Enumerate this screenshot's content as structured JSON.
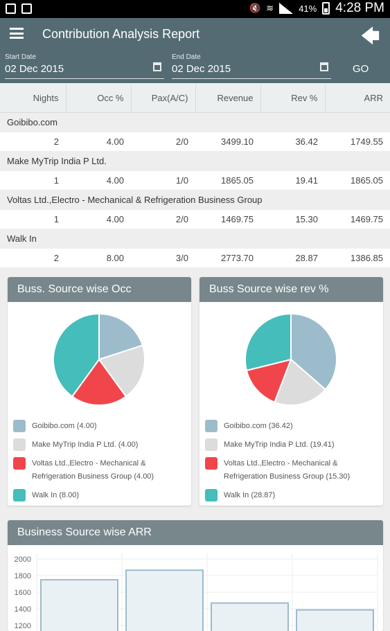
{
  "status_bar": {
    "time": "4:28 PM",
    "battery": "41%"
  },
  "app_bar": {
    "title": "Contribution Analysis Report"
  },
  "filters": {
    "start_label": "Start Date",
    "start_value": "02 Dec 2015",
    "end_label": "End Date",
    "end_value": "02 Dec 2015",
    "go_label": "GO"
  },
  "table": {
    "headers": [
      "Nights",
      "Occ %",
      "Pax(A/C)",
      "Revenue",
      "Rev %",
      "ARR"
    ],
    "groups": [
      {
        "name": "Goibibo.com",
        "row": [
          "2",
          "4.00",
          "2/0",
          "3499.10",
          "36.42",
          "1749.55"
        ]
      },
      {
        "name": "Make MyTrip India P Ltd.",
        "row": [
          "1",
          "4.00",
          "1/0",
          "1865.05",
          "19.41",
          "1865.05"
        ]
      },
      {
        "name": "Voltas Ltd.,Electro - Mechanical & Refrigeration Business Group",
        "row": [
          "1",
          "4.00",
          "2/0",
          "1469.75",
          "15.30",
          "1469.75"
        ]
      },
      {
        "name": "Walk In",
        "row": [
          "2",
          "8.00",
          "3/0",
          "2773.70",
          "28.87",
          "1386.85"
        ]
      }
    ]
  },
  "charts": {
    "occ_title": "Buss. Source wise Occ",
    "rev_title": "Buss Source wise rev %",
    "arr_title": "Business Source wise ARR",
    "occ_legend": [
      "Goibibo.com (4.00)",
      "Make MyTrip India P Ltd. (4.00)",
      "Voltas Ltd.,Electro - Mechanical & Refrigeration Business Group (4.00)",
      "Walk In (8.00)"
    ],
    "rev_legend": [
      "Goibibo.com (36.42)",
      "Make MyTrip India P Ltd. (19.41)",
      "Voltas Ltd.,Electro - Mechanical & Refrigeration Business Group (15.30)",
      "Walk In (28.87)"
    ],
    "colors": [
      "#9cbccb",
      "#dcdcdc",
      "#f0464b",
      "#44bdbb"
    ]
  },
  "chart_data": [
    {
      "type": "pie",
      "title": "Buss. Source wise Occ",
      "categories": [
        "Goibibo.com",
        "Make MyTrip India P Ltd.",
        "Voltas Ltd.,Electro - Mechanical & Refrigeration Business Group",
        "Walk In"
      ],
      "values": [
        4.0,
        4.0,
        4.0,
        8.0
      ]
    },
    {
      "type": "pie",
      "title": "Buss Source wise rev %",
      "categories": [
        "Goibibo.com",
        "Make MyTrip India P Ltd.",
        "Voltas Ltd.,Electro - Mechanical & Refrigeration Business Group",
        "Walk In"
      ],
      "values": [
        36.42,
        19.41,
        15.3,
        28.87
      ]
    },
    {
      "type": "bar",
      "title": "Business Source wise ARR",
      "categories": [
        "Goibibo.com",
        "Make MyTrip India P Ltd.",
        "Voltas Ltd.,Electro - Mechanical & Refrigeration Business Group",
        "Walk In"
      ],
      "values": [
        1749.55,
        1865.05,
        1469.75,
        1386.85
      ],
      "y_ticks": [
        2000,
        1800,
        1600,
        1400,
        1200
      ],
      "ylim": [
        1000,
        2000
      ]
    }
  ]
}
